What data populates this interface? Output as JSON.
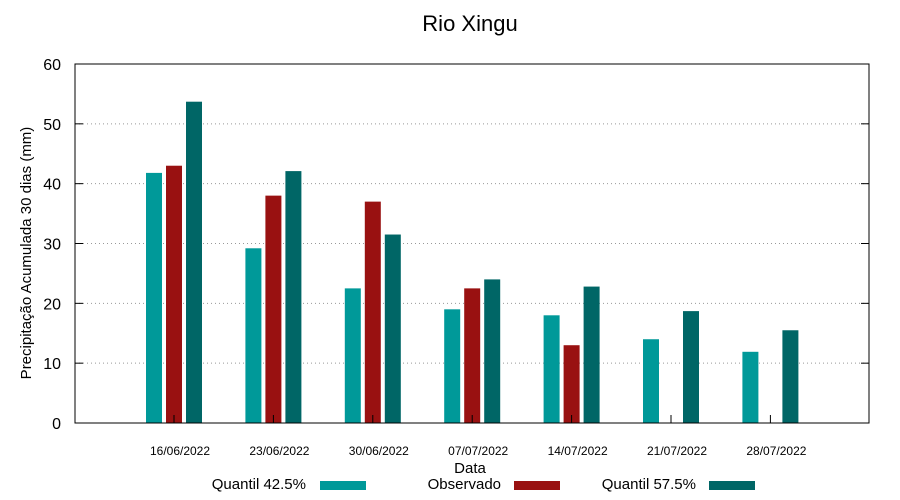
{
  "chart_data": {
    "type": "bar",
    "title": "Rio Xingu",
    "xlabel": "Data",
    "ylabel": "Precipitação Acumulada 30 dias (mm)",
    "ylim": [
      0,
      60
    ],
    "yticks": [
      0,
      10,
      20,
      30,
      40,
      50,
      60
    ],
    "grid": "horizontal dotted",
    "legend_position": "bottom",
    "categories": [
      "16/06/2022",
      "23/06/2022",
      "30/06/2022",
      "07/07/2022",
      "14/07/2022",
      "21/07/2022",
      "28/07/2022"
    ],
    "series": [
      {
        "name": "Quantil 42.5%",
        "color": "#009999",
        "values": [
          41.8,
          29.2,
          22.5,
          19.0,
          18.0,
          14.0,
          11.9
        ]
      },
      {
        "name": "Observado",
        "color": "#991111",
        "values": [
          43.0,
          38.0,
          37.0,
          22.5,
          13.0,
          null,
          null
        ]
      },
      {
        "name": "Quantil 57.5%",
        "color": "#006666",
        "values": [
          53.7,
          42.1,
          31.5,
          24.0,
          22.8,
          18.7,
          15.5
        ]
      }
    ]
  }
}
